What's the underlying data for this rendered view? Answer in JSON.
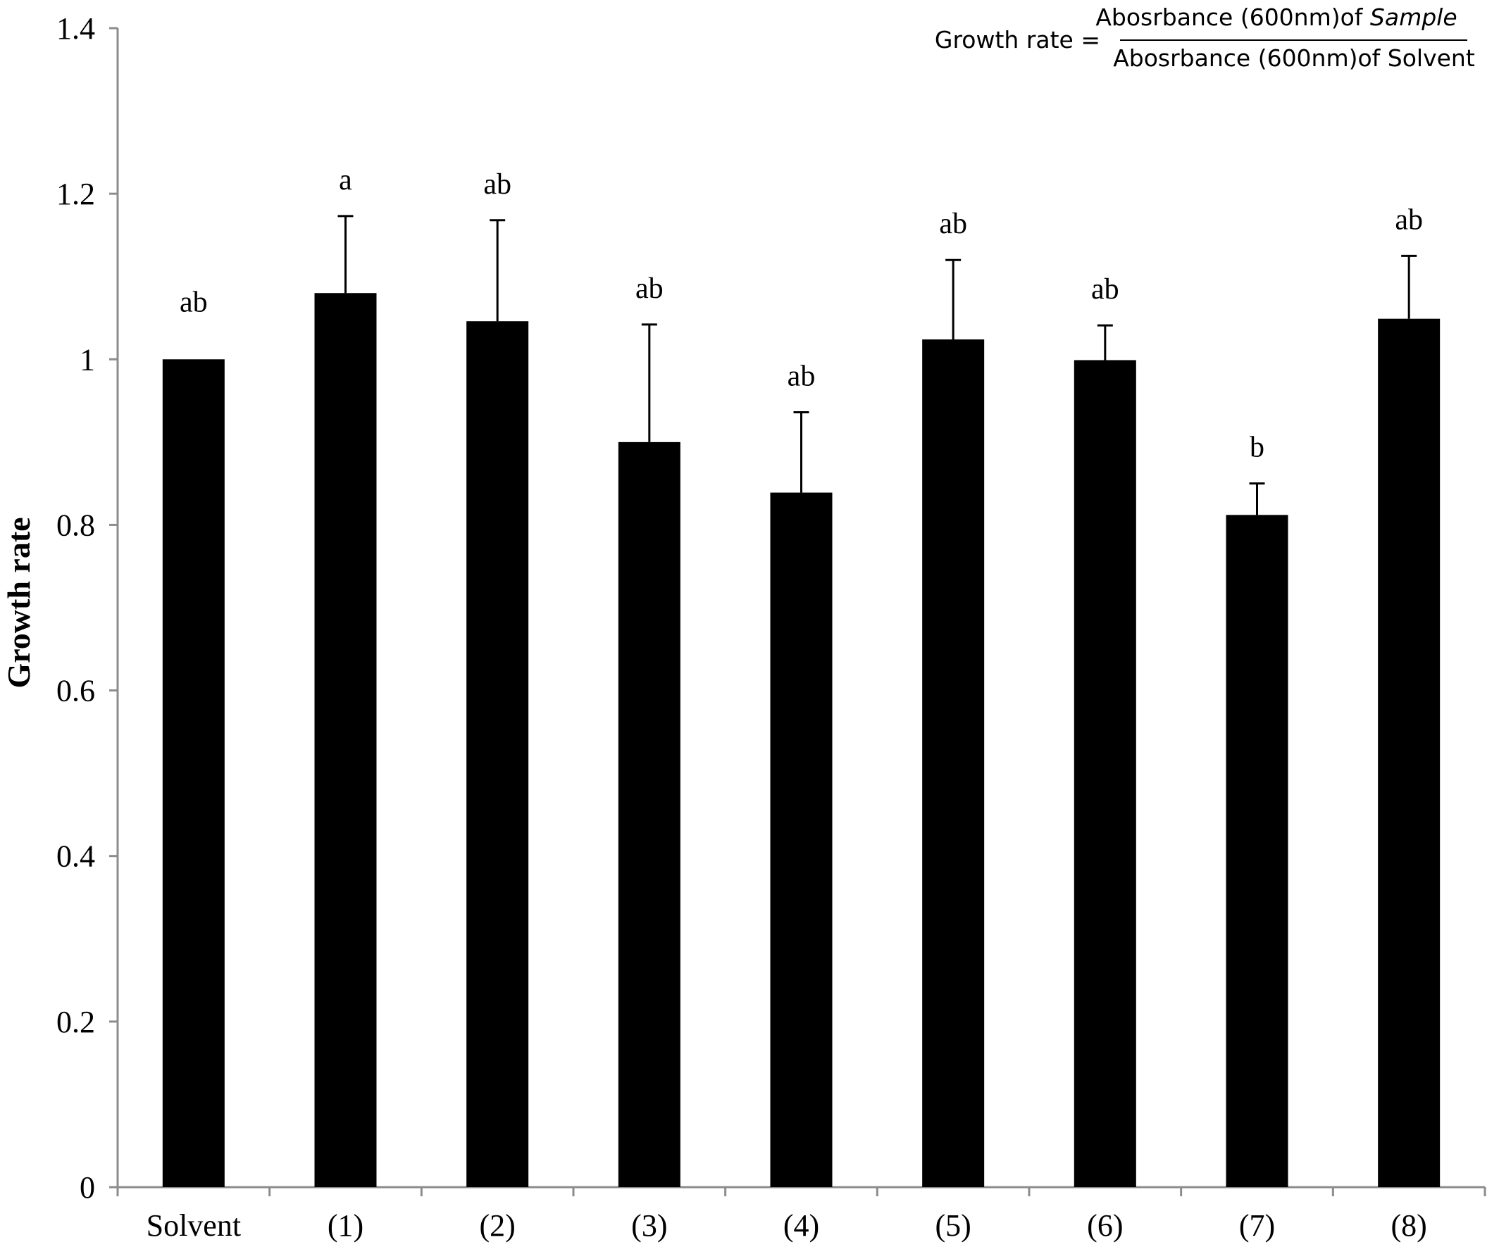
{
  "chart_data": {
    "type": "bar",
    "title": "",
    "xlabel": "",
    "ylabel": "Growth rate",
    "ylim": [
      0,
      1.4
    ],
    "yticks": [
      0,
      0.2,
      0.4,
      0.6,
      0.8,
      1,
      1.2,
      1.4
    ],
    "ytick_labels": [
      "0",
      "0.2",
      "0.4",
      "0.6",
      "0.8",
      "1",
      "1.2",
      "1.4"
    ],
    "grid": false,
    "legend": "none",
    "bar_color": "#000000",
    "axis_color": "#8c8c8c",
    "categories": [
      "Solvent",
      "(1)",
      "(2)",
      "(3)",
      "(4)",
      "(5)",
      "(6)",
      "(7)",
      "(8)"
    ],
    "values": [
      1.0,
      1.08,
      1.046,
      0.9,
      0.839,
      1.024,
      0.999,
      0.812,
      1.049
    ],
    "error_upper": [
      0,
      0.093,
      0.122,
      0.142,
      0.097,
      0.096,
      0.042,
      0.038,
      0.076
    ],
    "significance": [
      "ab",
      "a",
      "ab",
      "ab",
      "ab",
      "ab",
      "ab",
      "b",
      "ab"
    ],
    "annotation": {
      "lhs": "Growth rate =",
      "numerator_text": "Abosrbance (600nm)of ",
      "numerator_italic": "Sample",
      "denominator_text": "Abosrbance (600nm)of Solvent"
    }
  }
}
